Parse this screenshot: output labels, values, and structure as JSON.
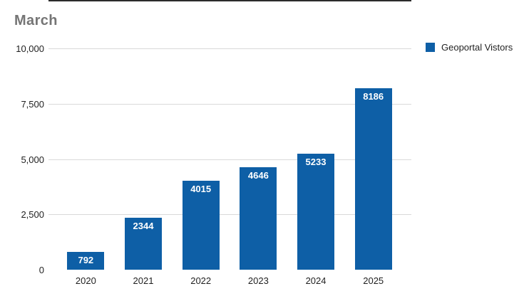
{
  "chart_data": {
    "type": "bar",
    "title": "March",
    "categories": [
      "2020",
      "2021",
      "2022",
      "2023",
      "2024",
      "2025"
    ],
    "series": [
      {
        "name": "Geoportal Vistors",
        "values": [
          792,
          2344,
          4015,
          4646,
          5233,
          8186
        ]
      }
    ],
    "xlabel": "",
    "ylabel": "",
    "ylim": [
      0,
      10000
    ],
    "y_ticks": [
      {
        "value": 0,
        "label": "0"
      },
      {
        "value": 2500,
        "label": "2,500"
      },
      {
        "value": 5000,
        "label": "5,000"
      },
      {
        "value": 7500,
        "label": "7,500"
      },
      {
        "value": 10000,
        "label": "10,000"
      }
    ],
    "grid": true,
    "legend_position": "top-right",
    "value_labels": "inside-top"
  },
  "colors": {
    "bar": "#0e5fa6",
    "bar_value_text": "#ffffff",
    "title_text": "#757575",
    "tick_text": "#1f1f1f",
    "gridline": "#d9d9d9",
    "axis_line": "#2b2b2b",
    "background": "#ffffff"
  }
}
